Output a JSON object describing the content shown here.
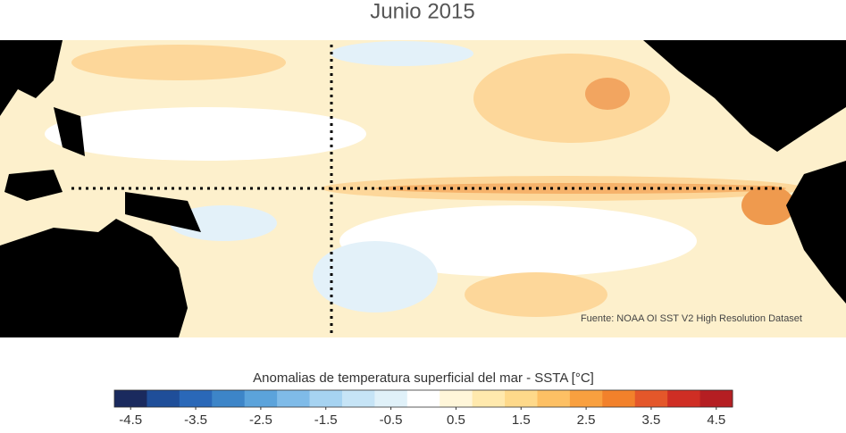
{
  "title": "Junio 2015",
  "source": "Fuente: NOAA OI SST V2 High Resolution Dataset",
  "colorbar": {
    "label": "Anomalias de temperatura superficial del mar - SSTA  [°C]",
    "colors": [
      "#1a2a5e",
      "#1f4e99",
      "#2a68b8",
      "#3d85c8",
      "#5ba3db",
      "#7fbbe8",
      "#a6d3f1",
      "#c6e4f6",
      "#e0f1f9",
      "#ffffff",
      "#fff6d9",
      "#ffe9ad",
      "#fed98a",
      "#fdc064",
      "#f9a03f",
      "#f2812b",
      "#e4572a",
      "#cf2e24",
      "#b51e22"
    ],
    "ticks": [
      -4.5,
      -3.5,
      -2.5,
      -1.5,
      -0.5,
      0.5,
      1.5,
      2.5,
      3.5,
      4.5
    ]
  }
}
